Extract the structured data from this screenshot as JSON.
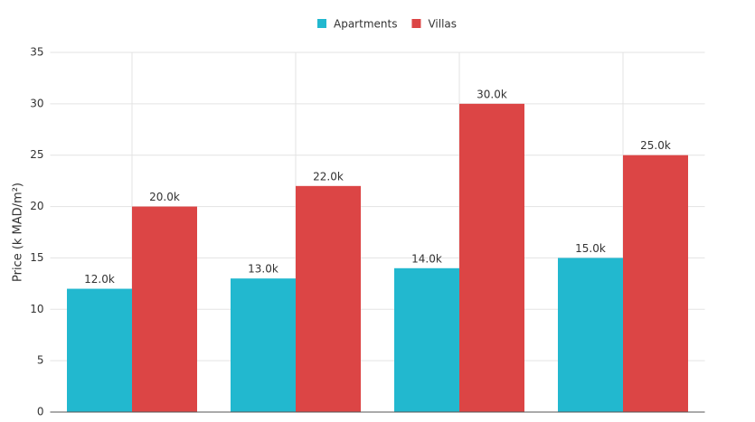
{
  "chart_data": {
    "type": "bar",
    "y_label": "Price (k MAD/m²)",
    "categories": [
      null,
      null,
      null,
      null
    ],
    "series": [
      {
        "name": "Apartments",
        "color": "#22b8cf",
        "values": [
          12,
          13,
          14,
          15
        ],
        "value_labels": [
          "12.0k",
          "13.0k",
          "14.0k",
          "15.0k"
        ]
      },
      {
        "name": "Villas",
        "color": "#dc4545",
        "values": [
          20,
          22,
          30,
          25
        ],
        "value_labels": [
          "20.0k",
          "22.0k",
          "30.0k",
          "25.0k"
        ]
      }
    ],
    "ylim": [
      0,
      35
    ],
    "yticks": [
      0,
      5,
      10,
      15,
      20,
      25,
      30,
      35
    ],
    "grid": true,
    "legend": "top"
  }
}
